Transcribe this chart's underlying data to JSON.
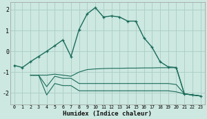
{
  "xlabel": "Humidex (Indice chaleur)",
  "bg_color": "#cce8e0",
  "grid_color": "#aaccc4",
  "line_color": "#1a6b5a",
  "xlim": [
    -0.5,
    23.5
  ],
  "ylim": [
    -2.55,
    2.35
  ],
  "yticks": [
    -2,
    -1,
    0,
    1,
    2
  ],
  "xticks": [
    0,
    1,
    2,
    3,
    4,
    5,
    6,
    7,
    8,
    9,
    10,
    11,
    12,
    13,
    14,
    15,
    16,
    17,
    18,
    19,
    20,
    21,
    22,
    23
  ],
  "main_line_x": [
    0,
    1,
    2,
    3,
    4,
    5,
    6,
    7,
    8,
    9,
    10,
    11,
    12,
    13,
    14,
    15,
    16,
    17,
    18,
    19,
    20,
    21,
    22,
    23
  ],
  "main_line_y": [
    -0.68,
    -0.78,
    -0.5,
    -0.25,
    0.0,
    0.27,
    0.55,
    -0.25,
    1.05,
    1.8,
    2.1,
    1.65,
    1.7,
    1.65,
    1.45,
    1.45,
    0.65,
    0.2,
    -0.5,
    -0.75,
    -0.78,
    -2.05,
    -2.1,
    -2.15
  ],
  "line1_x": [
    2,
    3,
    4,
    5,
    6,
    7,
    8,
    9,
    10,
    11,
    12,
    13,
    14,
    15,
    16,
    17,
    18,
    19,
    20,
    21,
    22,
    23
  ],
  "line1_y": [
    -1.15,
    -1.15,
    -1.15,
    -1.1,
    -1.15,
    -1.2,
    -1.0,
    -0.88,
    -0.85,
    -0.83,
    -0.82,
    -0.82,
    -0.81,
    -0.81,
    -0.8,
    -0.8,
    -0.79,
    -0.79,
    -0.79,
    -2.05,
    -2.1,
    -2.15
  ],
  "line2_x": [
    2,
    3,
    4,
    5,
    6,
    7,
    8,
    9,
    10,
    11,
    12,
    13,
    14,
    15,
    16,
    17,
    18,
    19,
    20,
    21,
    22,
    23
  ],
  "line2_y": [
    -1.15,
    -1.15,
    -1.7,
    -1.2,
    -1.3,
    -1.3,
    -1.55,
    -1.55,
    -1.55,
    -1.55,
    -1.55,
    -1.55,
    -1.55,
    -1.55,
    -1.55,
    -1.55,
    -1.55,
    -1.55,
    -1.6,
    -2.05,
    -2.1,
    -2.15
  ],
  "line3_x": [
    2,
    3,
    4,
    5,
    6,
    7,
    8,
    9,
    10,
    11,
    12,
    13,
    14,
    15,
    16,
    17,
    18,
    19,
    20,
    21,
    22,
    23
  ],
  "line3_y": [
    -1.15,
    -1.15,
    -2.1,
    -1.55,
    -1.65,
    -1.65,
    -1.9,
    -1.9,
    -1.9,
    -1.9,
    -1.9,
    -1.9,
    -1.9,
    -1.9,
    -1.9,
    -1.9,
    -1.9,
    -1.9,
    -1.95,
    -2.05,
    -2.1,
    -2.15
  ]
}
